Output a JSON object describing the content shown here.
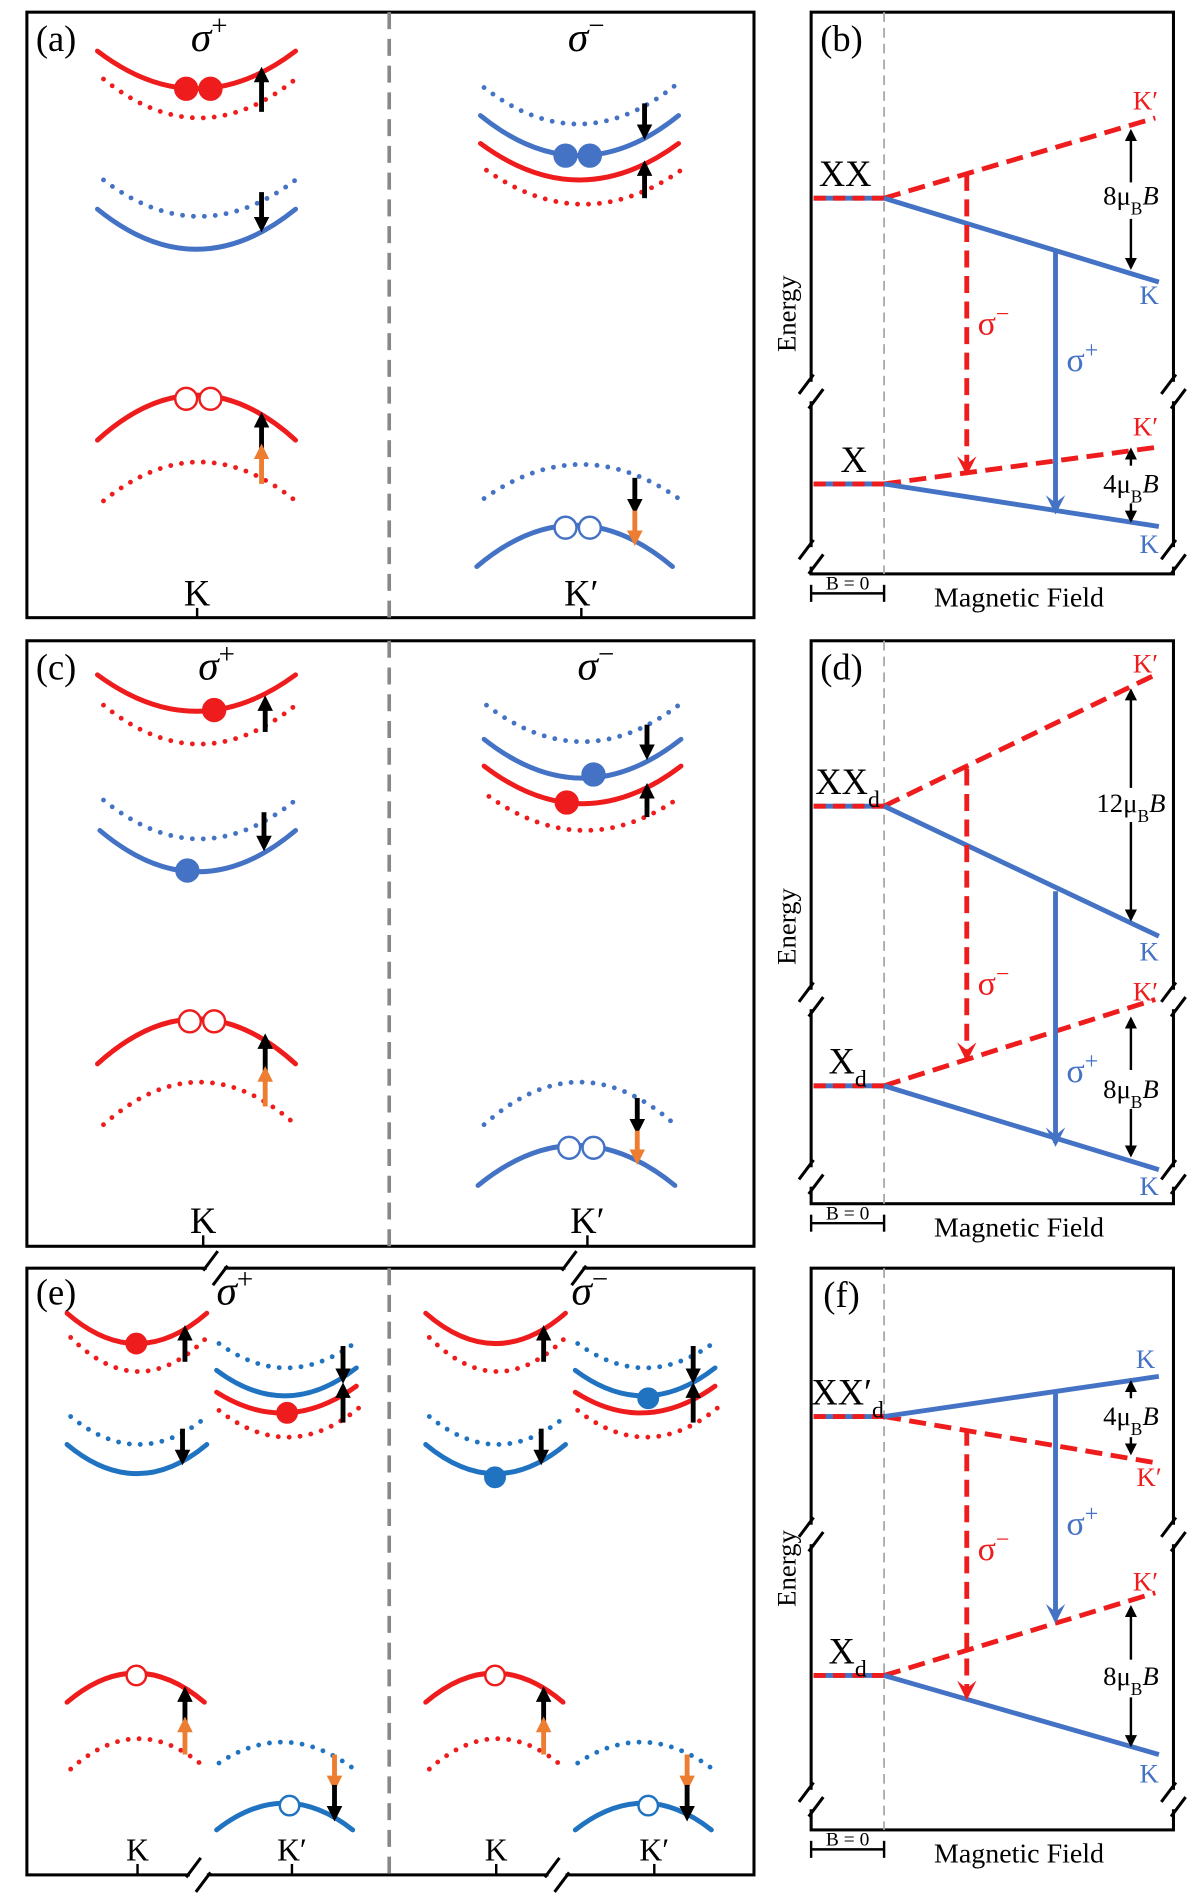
{
  "colors": {
    "red": "#ee1c1c",
    "blue": "#4472c4",
    "blue_e": "#2073c0",
    "orange": "#ed7d31",
    "black": "#000000",
    "gray": "#888888"
  },
  "sigma": {
    "base": "σ",
    "plus": "+",
    "minus": "−"
  },
  "panel_a": {
    "label": "(a)",
    "k_left": "K",
    "k_right": "K′"
  },
  "panel_c": {
    "label": "(c)",
    "k_left": "K",
    "k_right": "K′"
  },
  "panel_e": {
    "label": "(e)",
    "k1": "K",
    "k2": "K′",
    "k3": "K",
    "k4": "K′"
  },
  "panel_b": {
    "label": "(b)",
    "upper": "XX",
    "upper_sub": "",
    "lower": "X",
    "lower_sub": "",
    "upper_split": {
      "pre": "8μ",
      "sub": "B",
      "post": "B"
    },
    "lower_split": {
      "pre": "4μ",
      "sub": "B",
      "post": "B"
    },
    "up1": "K′",
    "down1": "K",
    "up2": "K′",
    "down2": "K",
    "energy": "Energy",
    "field": "Magnetic Field",
    "b0": "B = 0"
  },
  "panel_d": {
    "label": "(d)",
    "upper": "XX",
    "upper_sub": "d",
    "lower": "X",
    "lower_sub": "d",
    "upper_split": {
      "pre": "12μ",
      "sub": "B",
      "post": "B"
    },
    "lower_split": {
      "pre": "8μ",
      "sub": "B",
      "post": "B"
    },
    "up1": "K′",
    "down1": "K",
    "up2": "K′",
    "down2": "K",
    "energy": "Energy",
    "field": "Magnetic Field",
    "b0": "B = 0"
  },
  "panel_f": {
    "label": "(f)",
    "upper": "XX′",
    "upper_sub": "d",
    "lower": "X",
    "lower_sub": "d",
    "upper_split": {
      "pre": "4μ",
      "sub": "B",
      "post": "B"
    },
    "lower_split": {
      "pre": "8μ",
      "sub": "B",
      "post": "B"
    },
    "up1": "K",
    "down1": "K′",
    "up2": "K′",
    "down2": "K",
    "energy": "Energy",
    "field": "Magnetic Field",
    "b0": "B = 0"
  }
}
